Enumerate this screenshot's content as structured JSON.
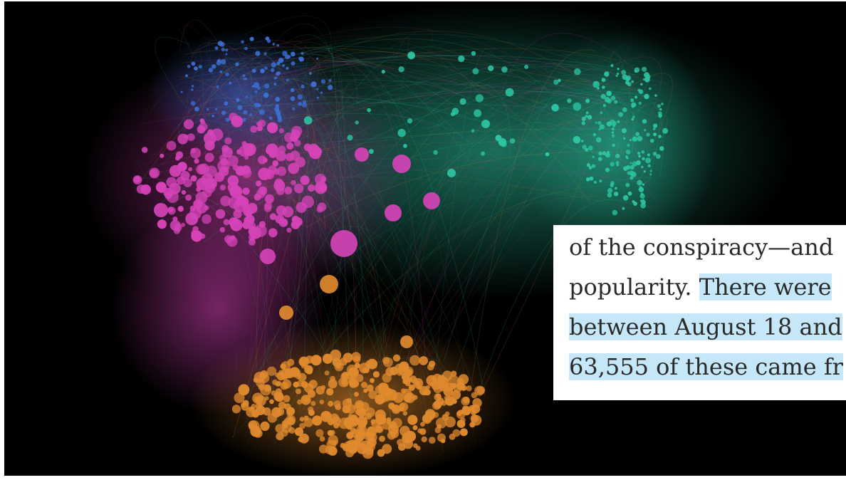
{
  "caption": {
    "line1": "of the conspiracy—and",
    "line2_plain": "popularity. ",
    "line2_highlight": "There were",
    "line3": "between August 18 and",
    "line4": "63,555 of these came fr"
  },
  "colors": {
    "background": "#000000",
    "teal": "#2ec6a4",
    "blue": "#3d6fd6",
    "magenta": "#d543b7",
    "orange": "#e08a2e",
    "highlight": "#c6e7f7"
  }
}
